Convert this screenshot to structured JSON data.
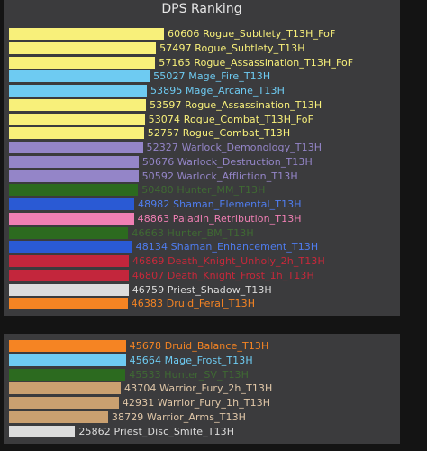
{
  "chart_data": {
    "type": "bar",
    "orientation": "horizontal",
    "title": "DPS Ranking",
    "series_name": "DPS",
    "groups": [
      {
        "entries": [
          {
            "value": 60606,
            "name": "Rogue_Subtlety_T13H_FoF",
            "color": "#f8f07a"
          },
          {
            "value": 57497,
            "name": "Rogue_Subtlety_T13H",
            "color": "#f8f07a"
          },
          {
            "value": 57165,
            "name": "Rogue_Assassination_T13H_FoF",
            "color": "#f8f07a"
          },
          {
            "value": 55027,
            "name": "Mage_Fire_T13H",
            "color": "#6ecbf2"
          },
          {
            "value": 53895,
            "name": "Mage_Arcane_T13H",
            "color": "#6ecbf2"
          },
          {
            "value": 53597,
            "name": "Rogue_Assassination_T13H",
            "color": "#f8f07a"
          },
          {
            "value": 53074,
            "name": "Rogue_Combat_T13H_FoF",
            "color": "#f8f07a"
          },
          {
            "value": 52757,
            "name": "Rogue_Combat_T13H",
            "color": "#f8f07a"
          },
          {
            "value": 52327,
            "name": "Warlock_Demonology_T13H",
            "color": "#9485c8"
          },
          {
            "value": 50676,
            "name": "Warlock_Destruction_T13H",
            "color": "#9485c8"
          },
          {
            "value": 50592,
            "name": "Warlock_Affliction_T13H",
            "color": "#9485c8"
          },
          {
            "value": 50480,
            "name": "Hunter_MM_T13H",
            "color": "#2c6a1f"
          },
          {
            "value": 48982,
            "name": "Shaman_Elemental_T13H",
            "color": "#2a5ad4"
          },
          {
            "value": 48863,
            "name": "Paladin_Retribution_T13H",
            "color": "#f07fb4"
          },
          {
            "value": 46663,
            "name": "Hunter_BM_T13H",
            "color": "#2c6a1f"
          },
          {
            "value": 48134,
            "name": "Shaman_Enhancement_T13H",
            "color": "#2a5ad4"
          },
          {
            "value": 46869,
            "name": "Death_Knight_Unholy_2h_T13H",
            "color": "#c3263c"
          },
          {
            "value": 46807,
            "name": "Death_Knight_Frost_1h_T13H",
            "color": "#c3263c"
          },
          {
            "value": 46759,
            "name": "Priest_Shadow_T13H",
            "color": "#dcdcdc"
          },
          {
            "value": 46383,
            "name": "Druid_Feral_T13H",
            "color": "#f58423"
          }
        ]
      },
      {
        "entries": [
          {
            "value": 45678,
            "name": "Druid_Balance_T13H",
            "color": "#f58423"
          },
          {
            "value": 45664,
            "name": "Mage_Frost_T13H",
            "color": "#6ecbf2"
          },
          {
            "value": 45533,
            "name": "Hunter_SV_T13H",
            "color": "#2c6a1f"
          },
          {
            "value": 43704,
            "name": "Warrior_Fury_2h_T13H",
            "color": "#caa070"
          },
          {
            "value": 42931,
            "name": "Warrior_Fury_1h_T13H",
            "color": "#caa070"
          },
          {
            "value": 38729,
            "name": "Warrior_Arms_T13H",
            "color": "#caa070"
          },
          {
            "value": 25862,
            "name": "Priest_Disc_Smite_T13H",
            "color": "#dcdcdc"
          }
        ]
      }
    ]
  }
}
